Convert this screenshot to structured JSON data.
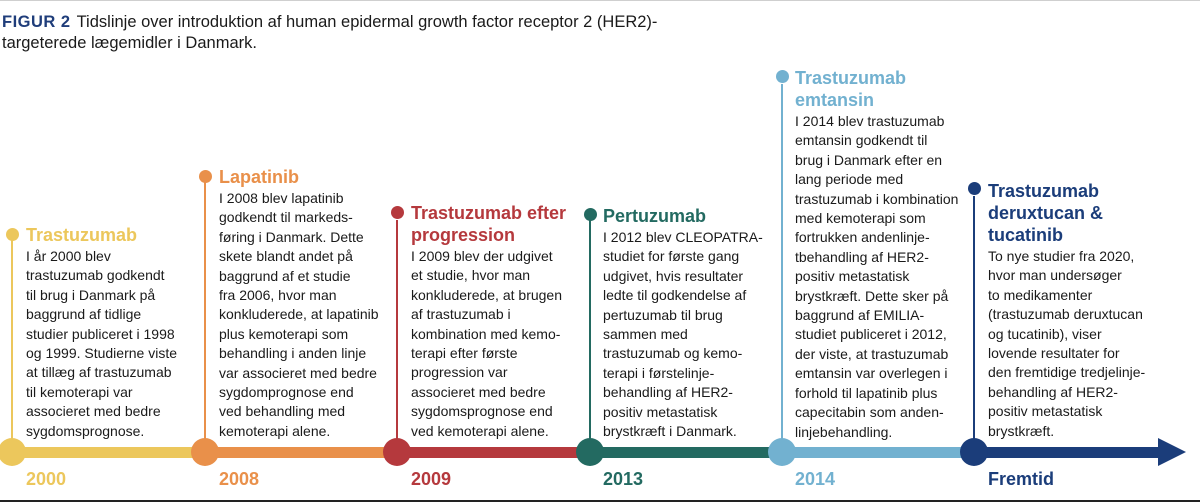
{
  "caption": {
    "label": "FIGUR 2",
    "text": "Tidslinje over introduktion af human epidermal growth factor receptor 2 (HER2)-targeterede lægemidler i Danmark."
  },
  "colors": {
    "c2000": "#ecc75c",
    "c2008": "#e9904a",
    "c2009": "#b5393d",
    "c2013": "#236a61",
    "c2014": "#72b1d0",
    "future": "#1b3d7a"
  },
  "events": [
    {
      "year": "2000",
      "title": "Trastuzumab",
      "text": "I år 2000 blev\ntrastuzumab godkendt\ntil brug i Danmark på\nbaggrund af tidlige\nstudier publiceret i 1998\nog 1999. Studierne viste\nat tillæg af trastuzumab\ntil kemoterapi var\nassocieret med bedre\nsygdomsprognose."
    },
    {
      "year": "2008",
      "title": "Lapatinib",
      "text": "I 2008 blev lapatinib\ngodkendt til markeds-\nføring i Danmark. Dette\nskete blandt andet på\nbaggrund af et studie\nfra 2006, hvor man\nkonkluderede, at lapatinib\nplus kemoterapi som\nbehandling i anden linje\nvar associeret med bedre\nsygdomprognose end\nved behandling med\nkemoterapi alene."
    },
    {
      "year": "2009",
      "title": "Trastuzumab efter progression",
      "text": "I 2009 blev der udgivet\net studie, hvor man\nkonkluderede, at brugen\naf trastuzumab i\nkombination med kemo-\nterapi efter første\nprogression var\nassocieret med bedre\nsygdomsprognose end\nved kemoterapi alene."
    },
    {
      "year": "2013",
      "title": "Pertuzumab",
      "text": "I 2012 blev CLEOPATRA-\nstudiet for første gang\nudgivet, hvis resultater\nledte til godkendelse af\npertuzumab til brug\nsammen med\ntrastuzumab og kemo-\nterapi i førstelinje-\nbehandling af HER2-\npositiv metastatisk\nbrystkræft i Danmark."
    },
    {
      "year": "2014",
      "title": "Trastuzumab emtansin",
      "text": "I 2014 blev trastuzumab\nemtansin godkendt til\nbrug i Danmark efter en\nlang periode med\ntrastuzumab i kombination\nmed kemoterapi som\nfortrukken andenlinje-\ntbehandling af HER2-\npositiv metastatisk\nbrystkræft. Dette sker på\nbaggrund af EMILIA-\nstudiet publiceret i 2012,\nder viste, at trastuzumab\nemtansin var overlegen i\nforhold til lapatinib plus\ncapecitabin som anden-\nlinjebehandling."
    },
    {
      "year": "Fremtid",
      "title": "Trastuzumab deruxtucan & tucatinib",
      "text": "To nye studier fra 2020,\nhvor man undersøger\nto medikamenter\n(trastuzumab deruxtucan\nog tucatinib), viser\nlovende resultater for\nden fremtidige tredjelinje-\nbehandling af HER2-\npositiv metastatisk\nbrystkræft."
    }
  ]
}
